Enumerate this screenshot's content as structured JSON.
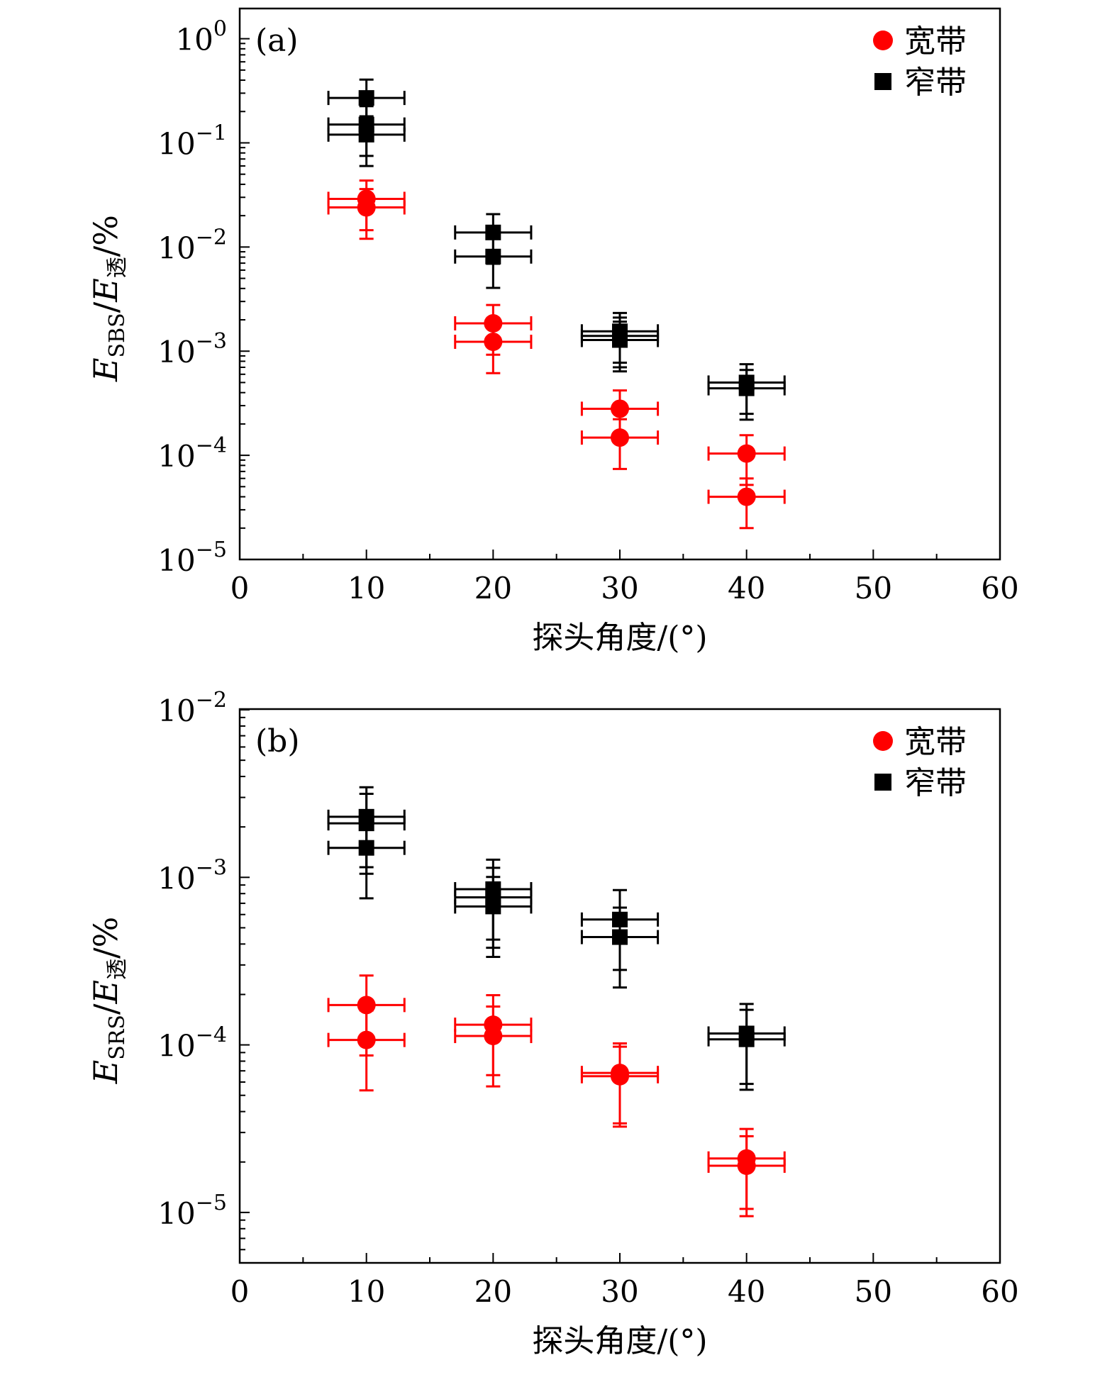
{
  "colors": {
    "broad": "#ff0000",
    "narrow": "#000000"
  },
  "chart_data": [
    {
      "type": "scatter",
      "panel_label": "(a)",
      "xlabel": "探头角度/(°)",
      "ylabel": {
        "main": "E",
        "sub": "SBS",
        "mid": "/",
        "main2": "E",
        "sub2": "透",
        "tail": "/%"
      },
      "xlim": [
        0,
        60
      ],
      "xticks": [
        0,
        10,
        20,
        30,
        40,
        50,
        60
      ],
      "ylog": true,
      "ylim": [
        1e-05,
        1.95
      ],
      "yticks": [
        {
          "value": 1,
          "base": "10",
          "exp": "0"
        },
        {
          "value": 0.1,
          "base": "10",
          "exp": "−1"
        },
        {
          "value": 0.01,
          "base": "10",
          "exp": "−2"
        },
        {
          "value": 0.001,
          "base": "10",
          "exp": "−3"
        },
        {
          "value": 0.0001,
          "base": "10",
          "exp": "−4"
        },
        {
          "value": 1e-05,
          "base": "10",
          "exp": "−5"
        }
      ],
      "legend_position": "top-right",
      "series": [
        {
          "name": "宽带",
          "marker": "circle",
          "color": "#ff0000",
          "x_err": 3,
          "y_err_rel": 0.5,
          "points": [
            [
              10,
              0.029
            ],
            [
              10,
              0.024
            ],
            [
              20,
              0.00185
            ],
            [
              20,
              0.00123
            ],
            [
              30,
              0.00028
            ],
            [
              30,
              0.000148
            ],
            [
              40,
              0.000104
            ],
            [
              40,
              4e-05
            ]
          ]
        },
        {
          "name": "窄带",
          "marker": "square",
          "color": "#000000",
          "x_err": 3,
          "y_err_rel": 0.5,
          "points": [
            [
              10,
              0.27
            ],
            [
              10,
              0.15
            ],
            [
              10,
              0.12
            ],
            [
              20,
              0.0138
            ],
            [
              20,
              0.0081
            ],
            [
              30,
              0.00155
            ],
            [
              30,
              0.0014
            ],
            [
              30,
              0.00128
            ],
            [
              40,
              0.0005
            ],
            [
              40,
              0.00044
            ]
          ]
        }
      ]
    },
    {
      "type": "scatter",
      "panel_label": "(b)",
      "xlabel": "探头角度/(°)",
      "ylabel": {
        "main": "E",
        "sub": "SRS",
        "mid": "/",
        "main2": "E",
        "sub2": "透",
        "tail": "/%"
      },
      "xlim": [
        0,
        60
      ],
      "xticks": [
        0,
        10,
        20,
        30,
        40,
        50,
        60
      ],
      "ylog": true,
      "ylim": [
        5e-06,
        0.0101
      ],
      "yticks": [
        {
          "value": 0.01,
          "base": "10",
          "exp": "−2"
        },
        {
          "value": 0.001,
          "base": "10",
          "exp": "−3"
        },
        {
          "value": 0.0001,
          "base": "10",
          "exp": "−4"
        },
        {
          "value": 1e-05,
          "base": "10",
          "exp": "−5"
        }
      ],
      "legend_position": "top-right",
      "series": [
        {
          "name": "宽带",
          "marker": "circle",
          "color": "#ff0000",
          "x_err": 3,
          "y_err_rel": 0.5,
          "points": [
            [
              10,
              0.000173
            ],
            [
              10,
              0.000107
            ],
            [
              20,
              0.000132
            ],
            [
              20,
              0.000113
            ],
            [
              30,
              6.8e-05
            ],
            [
              30,
              6.5e-05
            ],
            [
              40,
              2.1e-05
            ],
            [
              40,
              1.9e-05
            ]
          ]
        },
        {
          "name": "窄带",
          "marker": "square",
          "color": "#000000",
          "x_err": 3,
          "y_err_rel": 0.5,
          "points": [
            [
              10,
              0.0023
            ],
            [
              10,
              0.0021
            ],
            [
              10,
              0.0015
            ],
            [
              20,
              0.00085
            ],
            [
              20,
              0.00076
            ],
            [
              20,
              0.00067
            ],
            [
              30,
              0.00056
            ],
            [
              30,
              0.00044
            ],
            [
              40,
              0.000117
            ],
            [
              40,
              0.000108
            ]
          ]
        }
      ]
    }
  ]
}
